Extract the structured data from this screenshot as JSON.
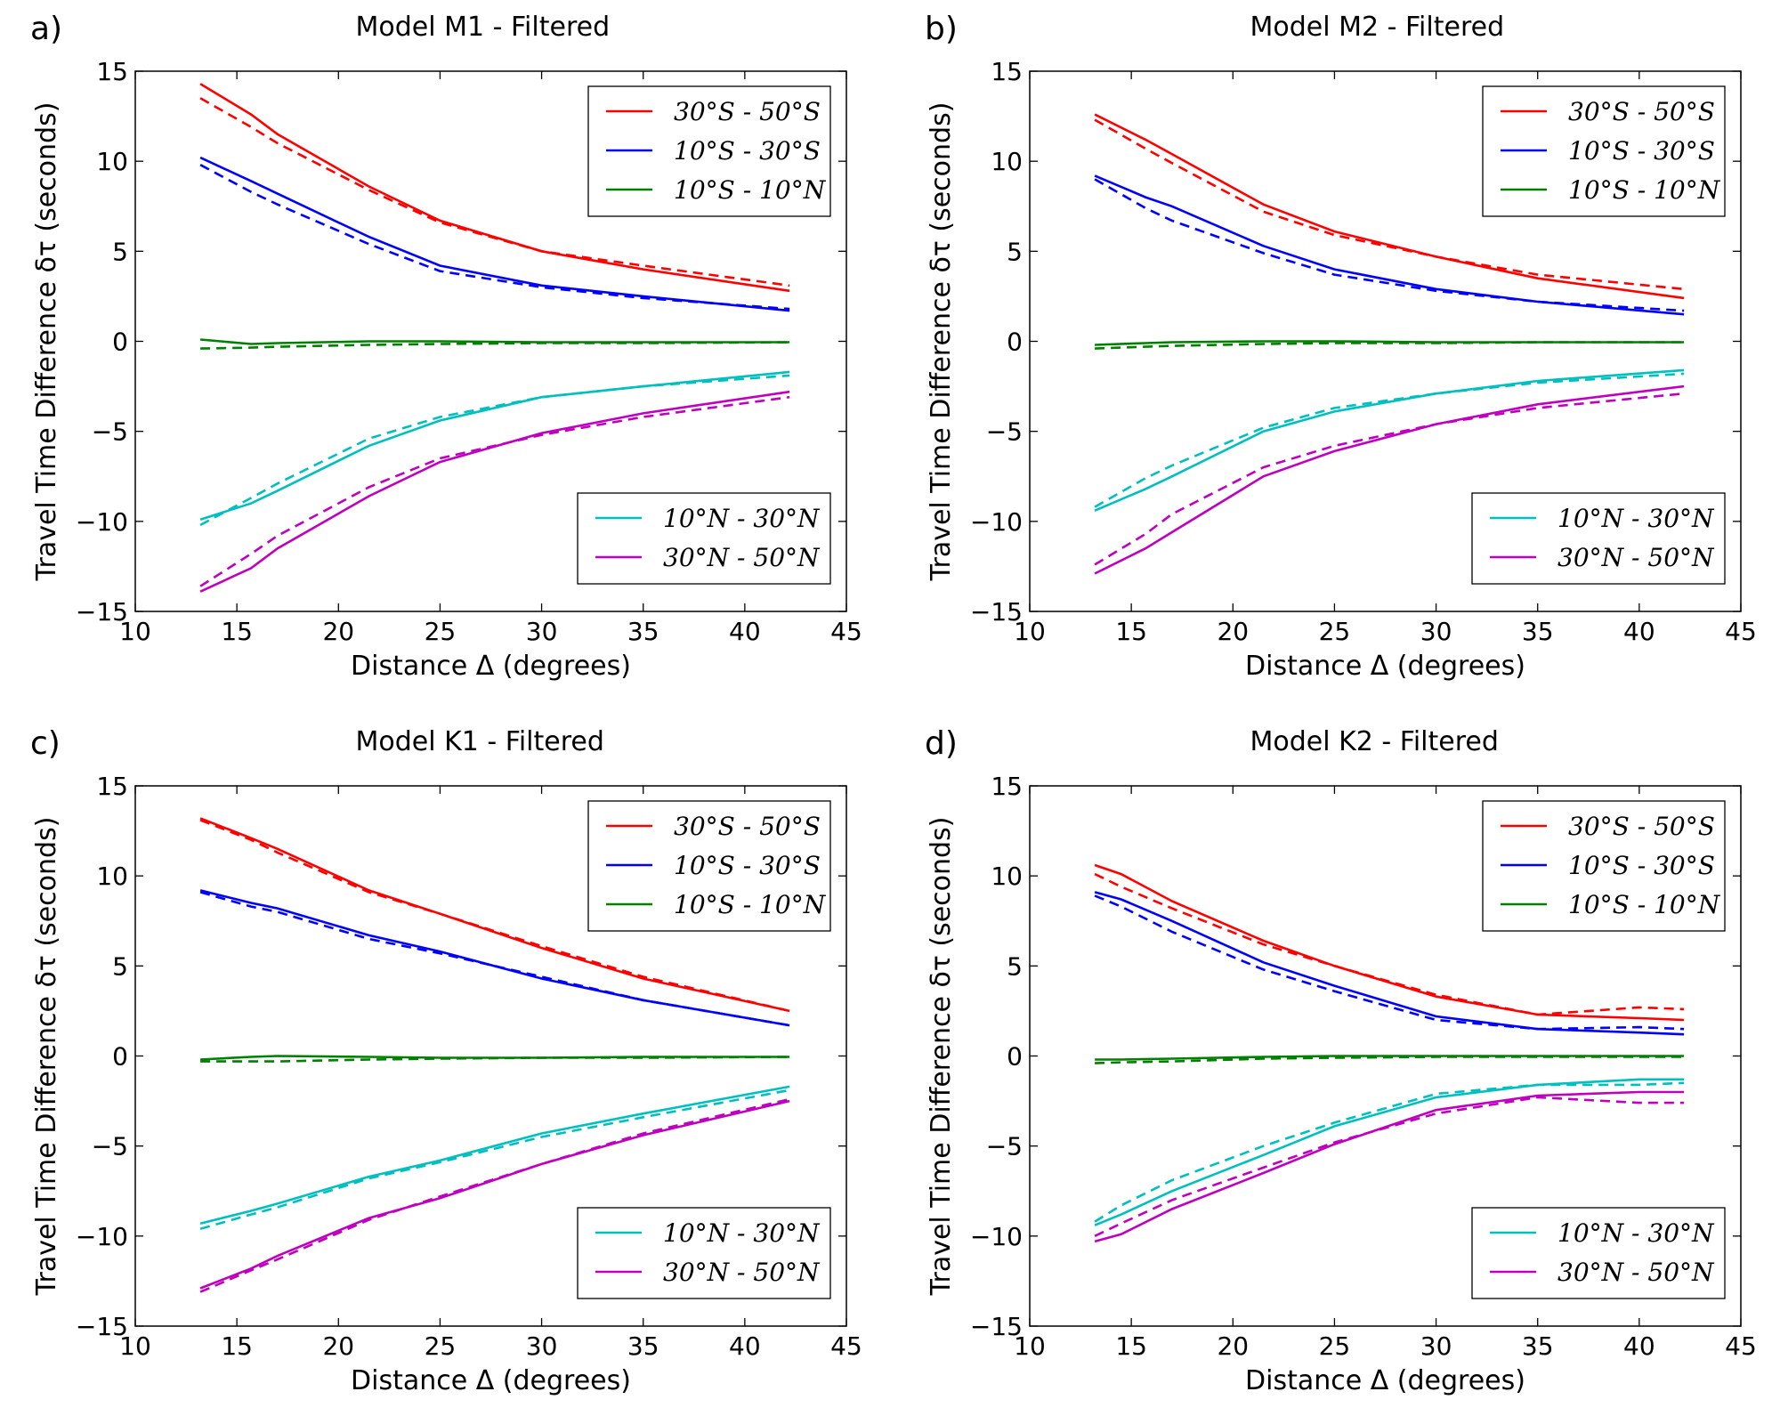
{
  "figure": {
    "description": "Four panels of travel time difference vs distance; solid lines and dashed lines per latitude band"
  },
  "colors": {
    "30S-50S": "#ff0000",
    "10S-30S": "#0000ff",
    "10S-10N": "#008000",
    "10N-30N": "#00bfbf",
    "30N-50N": "#bf00bf"
  },
  "chart_data": [
    {
      "type": "line",
      "panel_label": "a)",
      "title": "Model M1 - Filtered",
      "xlabel": "Distance Δ (degrees)",
      "ylabel": "Travel Time Difference  δτ (seconds)",
      "xlim": [
        10,
        45
      ],
      "ylim": [
        -15,
        15
      ],
      "xticks": [
        "10",
        "15",
        "20",
        "25",
        "30",
        "35",
        "40",
        "45"
      ],
      "yticks": [
        "15",
        "10",
        "5",
        "0",
        "−5",
        "−10",
        "−15"
      ],
      "grid": false,
      "legend_upper": "top-right",
      "legend_lower": "bottom-right",
      "x": [
        13.2,
        15.7,
        17.0,
        21.5,
        25.0,
        30.0,
        35.0,
        42.2
      ],
      "series": [
        {
          "name": "30°S - 50°S",
          "key": "30S-50S",
          "solid": [
            14.3,
            12.6,
            11.5,
            8.6,
            6.7,
            5.0,
            4.0,
            2.8
          ],
          "dashed": [
            13.5,
            11.9,
            11.0,
            8.4,
            6.6,
            5.0,
            4.2,
            3.1
          ]
        },
        {
          "name": "10°S - 30°S",
          "key": "10S-30S",
          "solid": [
            10.2,
            8.9,
            8.2,
            5.8,
            4.2,
            3.1,
            2.5,
            1.7
          ],
          "dashed": [
            9.8,
            8.3,
            7.6,
            5.4,
            3.9,
            3.0,
            2.4,
            1.8
          ]
        },
        {
          "name": "10°S - 10°N",
          "key": "10S-10N",
          "solid": [
            0.1,
            -0.15,
            -0.1,
            0.0,
            0.0,
            -0.05,
            -0.05,
            -0.05
          ],
          "dashed": [
            -0.4,
            -0.35,
            -0.3,
            -0.2,
            -0.15,
            -0.1,
            -0.1,
            -0.05
          ]
        },
        {
          "name": "10°N - 30°N",
          "key": "10N-30N",
          "solid": [
            -9.9,
            -9.0,
            -8.3,
            -5.8,
            -4.4,
            -3.1,
            -2.5,
            -1.7
          ],
          "dashed": [
            -10.2,
            -8.7,
            -7.9,
            -5.4,
            -4.2,
            -3.1,
            -2.5,
            -1.9
          ]
        },
        {
          "name": "30°N - 50°N",
          "key": "30N-50N",
          "solid": [
            -13.9,
            -12.6,
            -11.5,
            -8.6,
            -6.7,
            -5.1,
            -4.0,
            -2.8
          ],
          "dashed": [
            -13.6,
            -11.8,
            -10.8,
            -8.1,
            -6.5,
            -5.2,
            -4.2,
            -3.1
          ]
        }
      ]
    },
    {
      "type": "line",
      "panel_label": "b)",
      "title": "Model M2 - Filtered",
      "xlabel": "Distance Δ (degrees)",
      "ylabel": "Travel Time Difference  δτ (seconds)",
      "xlim": [
        10,
        45
      ],
      "ylim": [
        -15,
        15
      ],
      "xticks": [
        "10",
        "15",
        "20",
        "25",
        "30",
        "35",
        "40",
        "45"
      ],
      "yticks": [
        "15",
        "10",
        "5",
        "0",
        "−5",
        "−10",
        "−15"
      ],
      "grid": false,
      "legend_upper": "top-right",
      "legend_lower": "bottom-right",
      "x": [
        13.2,
        15.7,
        17.0,
        21.5,
        25.0,
        30.0,
        35.0,
        42.2
      ],
      "series": [
        {
          "name": "30°S - 50°S",
          "key": "30S-50S",
          "solid": [
            12.6,
            11.2,
            10.4,
            7.6,
            6.1,
            4.7,
            3.5,
            2.4
          ],
          "dashed": [
            12.3,
            10.7,
            9.9,
            7.2,
            5.9,
            4.7,
            3.7,
            2.9
          ]
        },
        {
          "name": "10°S - 30°S",
          "key": "10S-30S",
          "solid": [
            9.2,
            8.0,
            7.5,
            5.3,
            4.0,
            2.9,
            2.2,
            1.5
          ],
          "dashed": [
            9.0,
            7.4,
            6.7,
            4.9,
            3.7,
            2.8,
            2.2,
            1.7
          ]
        },
        {
          "name": "10°S - 10°N",
          "key": "10S-10N",
          "solid": [
            -0.2,
            -0.1,
            -0.05,
            0.0,
            0.0,
            -0.05,
            -0.05,
            -0.05
          ],
          "dashed": [
            -0.4,
            -0.3,
            -0.25,
            -0.15,
            -0.1,
            -0.1,
            -0.05,
            -0.05
          ]
        },
        {
          "name": "10°N - 30°N",
          "key": "10N-30N",
          "solid": [
            -9.4,
            -8.2,
            -7.5,
            -5.0,
            -3.9,
            -2.9,
            -2.2,
            -1.6
          ],
          "dashed": [
            -9.2,
            -7.6,
            -6.9,
            -4.8,
            -3.7,
            -2.9,
            -2.3,
            -1.8
          ]
        },
        {
          "name": "30°N - 50°N",
          "key": "30N-50N",
          "solid": [
            -12.9,
            -11.5,
            -10.6,
            -7.5,
            -6.1,
            -4.6,
            -3.5,
            -2.5
          ],
          "dashed": [
            -12.4,
            -10.7,
            -9.6,
            -7.0,
            -5.8,
            -4.6,
            -3.7,
            -2.9
          ]
        }
      ]
    },
    {
      "type": "line",
      "panel_label": "c)",
      "title": "Model K1 - Filtered",
      "xlabel": "Distance Δ (degrees)",
      "ylabel": "Travel Time Difference  δτ (seconds)",
      "xlim": [
        10,
        45
      ],
      "ylim": [
        -15,
        15
      ],
      "xticks": [
        "10",
        "15",
        "20",
        "25",
        "30",
        "35",
        "40",
        "45"
      ],
      "yticks": [
        "15",
        "10",
        "5",
        "0",
        "−5",
        "−10",
        "−15"
      ],
      "grid": false,
      "legend_upper": "top-right",
      "legend_lower": "bottom-right",
      "x": [
        13.2,
        15.7,
        17.0,
        21.5,
        25.0,
        30.0,
        35.0,
        42.2
      ],
      "series": [
        {
          "name": "30°S - 50°S",
          "key": "30S-50S",
          "solid": [
            13.2,
            12.1,
            11.5,
            9.2,
            7.9,
            6.0,
            4.3,
            2.5
          ],
          "dashed": [
            13.1,
            12.0,
            11.3,
            9.1,
            7.9,
            6.1,
            4.4,
            2.5
          ]
        },
        {
          "name": "10°S - 30°S",
          "key": "10S-30S",
          "solid": [
            9.2,
            8.5,
            8.2,
            6.7,
            5.8,
            4.3,
            3.1,
            1.7
          ],
          "dashed": [
            9.1,
            8.3,
            8.0,
            6.5,
            5.7,
            4.4,
            3.1,
            1.7
          ]
        },
        {
          "name": "10°S - 10°N",
          "key": "10S-10N",
          "solid": [
            -0.2,
            -0.05,
            0.0,
            -0.05,
            -0.1,
            -0.1,
            -0.05,
            -0.05
          ],
          "dashed": [
            -0.3,
            -0.3,
            -0.3,
            -0.2,
            -0.15,
            -0.1,
            -0.1,
            -0.05
          ]
        },
        {
          "name": "10°N - 30°N",
          "key": "10N-30N",
          "solid": [
            -9.3,
            -8.6,
            -8.2,
            -6.7,
            -5.8,
            -4.3,
            -3.2,
            -1.7
          ],
          "dashed": [
            -9.6,
            -8.8,
            -8.4,
            -6.8,
            -5.9,
            -4.5,
            -3.4,
            -1.9
          ]
        },
        {
          "name": "30°N - 50°N",
          "key": "30N-50N",
          "solid": [
            -12.9,
            -11.8,
            -11.1,
            -9.0,
            -7.9,
            -6.0,
            -4.4,
            -2.5
          ],
          "dashed": [
            -13.1,
            -11.9,
            -11.3,
            -9.1,
            -7.8,
            -6.0,
            -4.3,
            -2.4
          ]
        }
      ]
    },
    {
      "type": "line",
      "panel_label": "d)",
      "title": "Model K2 - Filtered",
      "xlabel": "Distance Δ (degrees)",
      "ylabel": "Travel Time Difference  δτ (seconds)",
      "xlim": [
        10,
        45
      ],
      "ylim": [
        -15,
        15
      ],
      "xticks": [
        "10",
        "15",
        "20",
        "25",
        "30",
        "35",
        "40",
        "45"
      ],
      "yticks": [
        "15",
        "10",
        "5",
        "0",
        "−5",
        "−10",
        "−15"
      ],
      "grid": false,
      "legend_upper": "top-right",
      "legend_lower": "bottom-right",
      "x": [
        13.2,
        14.5,
        17.0,
        21.5,
        25.0,
        30.0,
        35.0,
        40.0,
        42.2
      ],
      "series": [
        {
          "name": "30°S - 50°S",
          "key": "30S-50S",
          "solid": [
            10.6,
            10.1,
            8.6,
            6.4,
            5.0,
            3.3,
            2.3,
            2.1,
            2.0
          ],
          "dashed": [
            10.1,
            9.4,
            8.2,
            6.2,
            5.0,
            3.4,
            2.3,
            2.7,
            2.6
          ]
        },
        {
          "name": "10°S - 30°S",
          "key": "10S-30S",
          "solid": [
            9.1,
            8.7,
            7.5,
            5.2,
            3.9,
            2.2,
            1.5,
            1.3,
            1.2
          ],
          "dashed": [
            8.9,
            8.3,
            6.9,
            4.8,
            3.6,
            2.0,
            1.5,
            1.6,
            1.5
          ]
        },
        {
          "name": "10°S - 10°N",
          "key": "10S-10N",
          "solid": [
            -0.2,
            -0.2,
            -0.15,
            -0.05,
            0.0,
            0.0,
            0.0,
            0.0,
            0.0
          ],
          "dashed": [
            -0.4,
            -0.35,
            -0.3,
            -0.15,
            -0.1,
            -0.05,
            -0.05,
            -0.05,
            -0.05
          ]
        },
        {
          "name": "10°N - 30°N",
          "key": "10N-30N",
          "solid": [
            -9.4,
            -8.8,
            -7.5,
            -5.5,
            -3.9,
            -2.3,
            -1.6,
            -1.3,
            -1.3
          ],
          "dashed": [
            -9.2,
            -8.3,
            -6.9,
            -5.0,
            -3.7,
            -2.1,
            -1.6,
            -1.6,
            -1.5
          ]
        },
        {
          "name": "30°N - 50°N",
          "key": "30N-50N",
          "solid": [
            -10.3,
            -9.9,
            -8.5,
            -6.5,
            -4.9,
            -3.0,
            -2.2,
            -2.0,
            -2.0
          ],
          "dashed": [
            -10.0,
            -9.3,
            -8.0,
            -6.2,
            -4.8,
            -3.2,
            -2.3,
            -2.6,
            -2.6
          ]
        }
      ]
    }
  ]
}
